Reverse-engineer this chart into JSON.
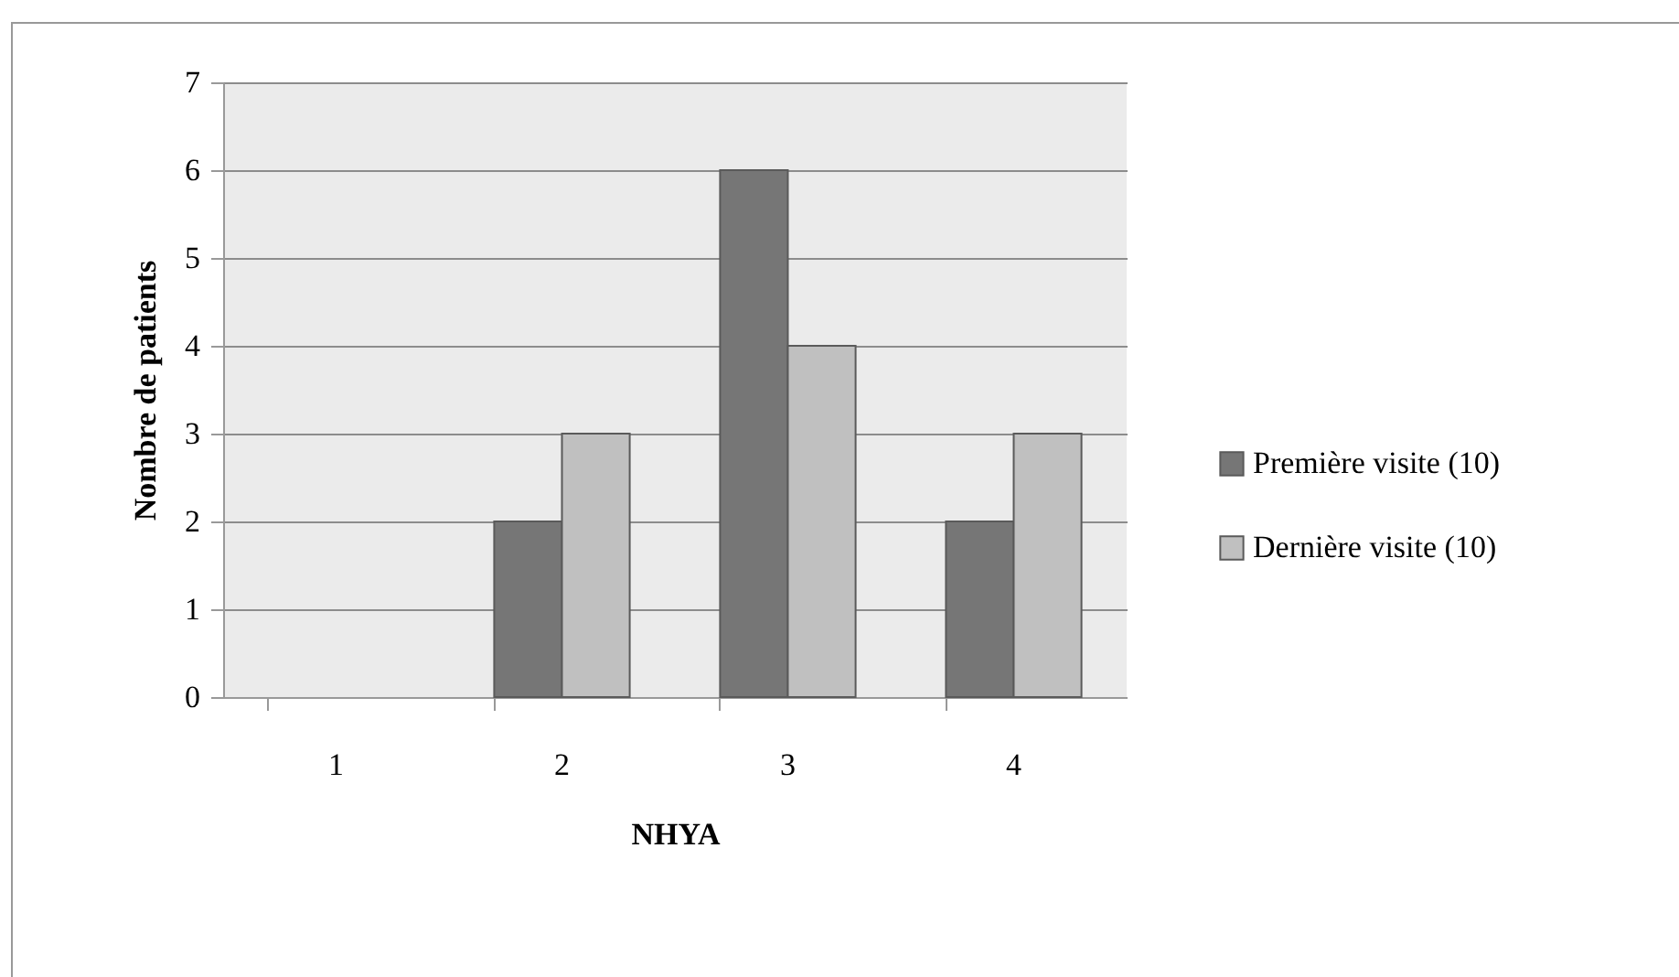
{
  "chart_data": {
    "type": "bar",
    "xlabel": "NHYA",
    "ylabel": "Nombre de patients",
    "categories": [
      "1",
      "2",
      "3",
      "4"
    ],
    "series": [
      {
        "name": "Première visite (10)",
        "color": "#767676",
        "values": [
          0,
          2,
          6,
          2
        ]
      },
      {
        "name": "Dernière visite (10)",
        "color": "#c0c0c0",
        "values": [
          0,
          3,
          4,
          3
        ]
      }
    ],
    "ylim": [
      0,
      7
    ],
    "yticks": [
      0,
      1,
      2,
      3,
      4,
      5,
      6,
      7
    ],
    "grid": true,
    "legend": "right"
  }
}
